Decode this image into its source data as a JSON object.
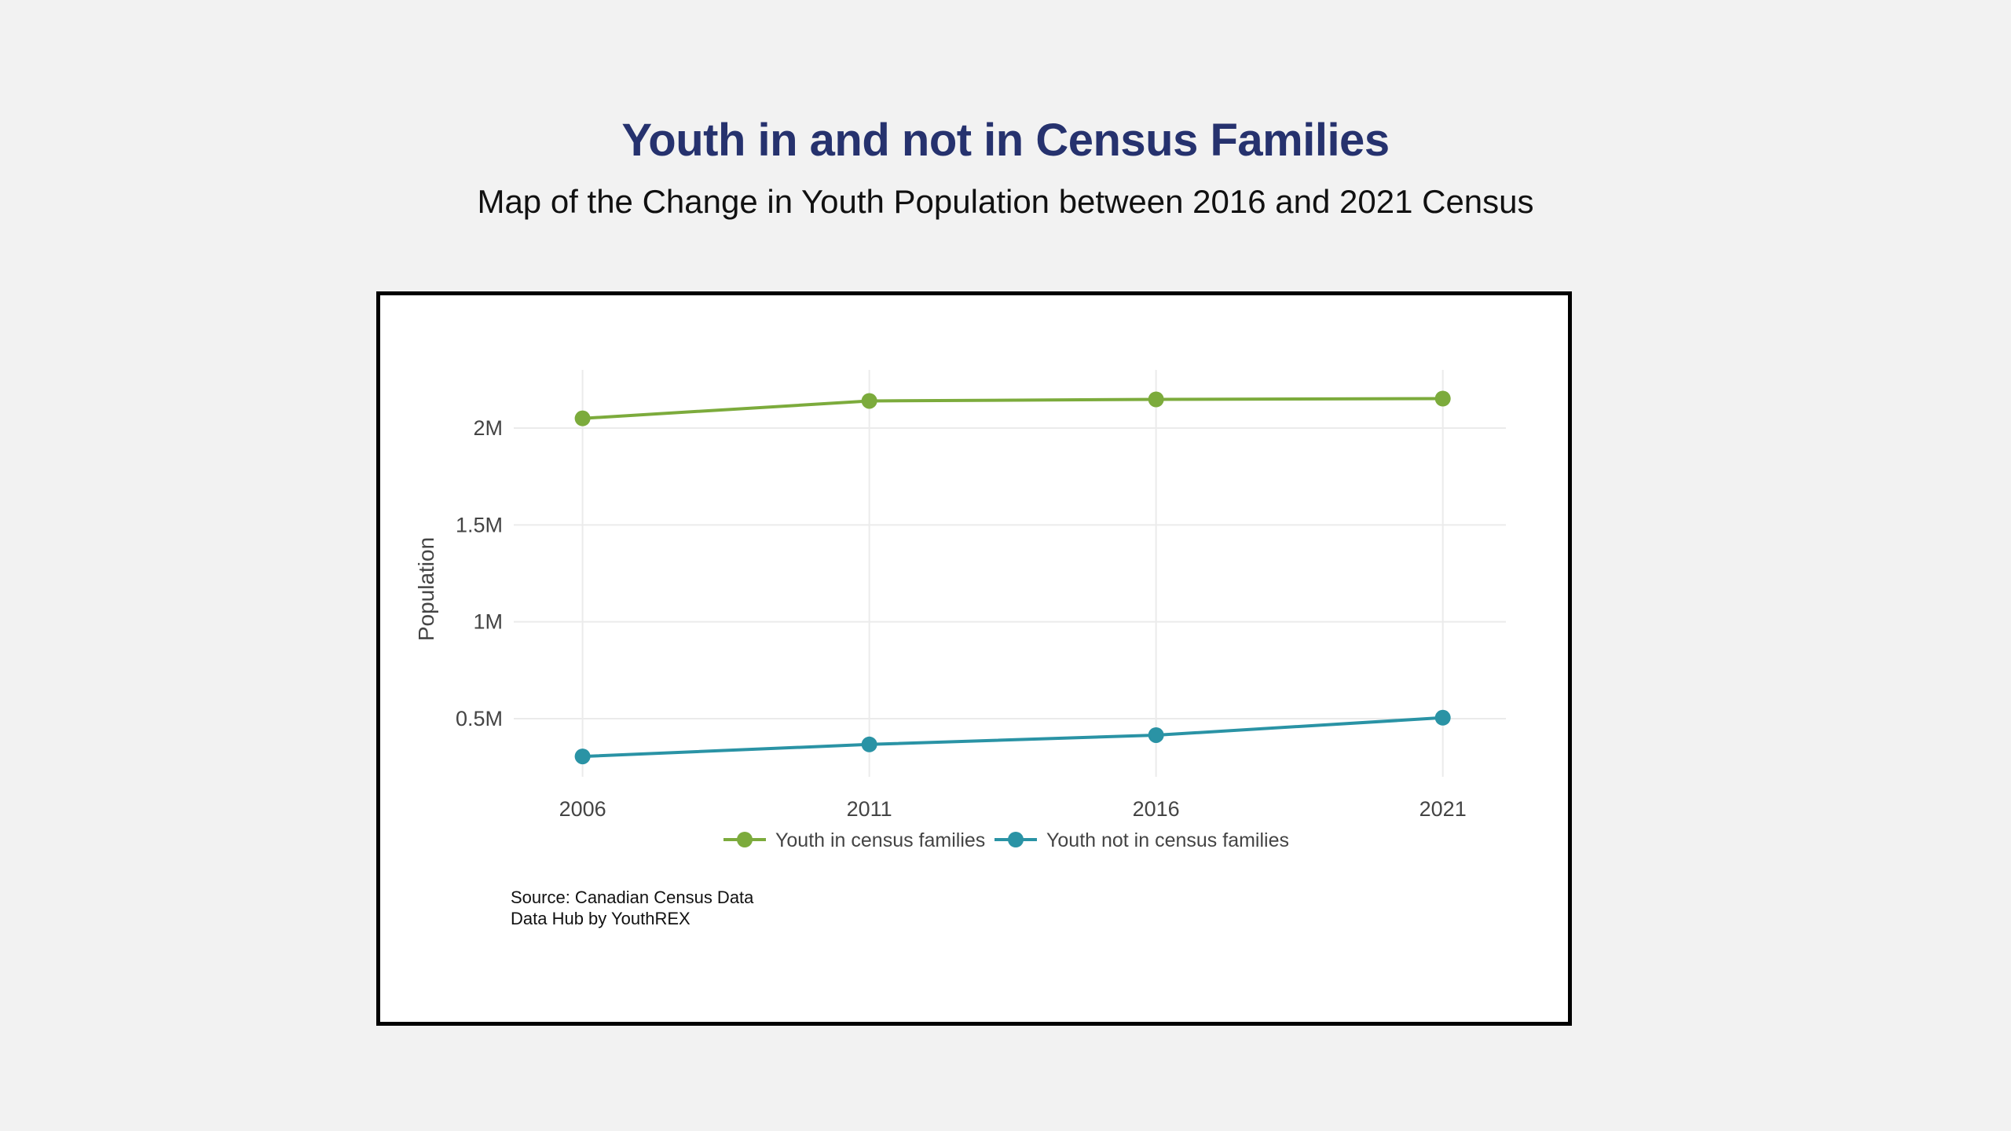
{
  "page": {
    "title": "Youth in and not in Census Families",
    "subtitle": "Map of the Change in Youth Population between 2016 and 2021 Census"
  },
  "source": {
    "line1": "Source: Canadian Census Data",
    "line2": "Data Hub by YouthREX"
  },
  "chart_data": {
    "type": "line",
    "title": "",
    "xlabel": "",
    "ylabel": "Population",
    "x": [
      2006,
      2011,
      2016,
      2021
    ],
    "x_tick_labels": [
      "2006",
      "2011",
      "2016",
      "2021"
    ],
    "y_ticks": [
      500000,
      1000000,
      1500000,
      2000000
    ],
    "y_tick_labels": [
      "0.5M",
      "1M",
      "1.5M",
      "2M"
    ],
    "ylim": [
      200000,
      2300000
    ],
    "xlim": [
      2004.8,
      2022.1
    ],
    "grid": true,
    "legend_position": "bottom",
    "series": [
      {
        "name": "Youth in census families",
        "color": "#7cab3c",
        "values": [
          2050000,
          2140000,
          2148000,
          2152000
        ]
      },
      {
        "name": "Youth not in census families",
        "color": "#2a93a5",
        "values": [
          305000,
          367000,
          415000,
          505000
        ]
      }
    ]
  }
}
